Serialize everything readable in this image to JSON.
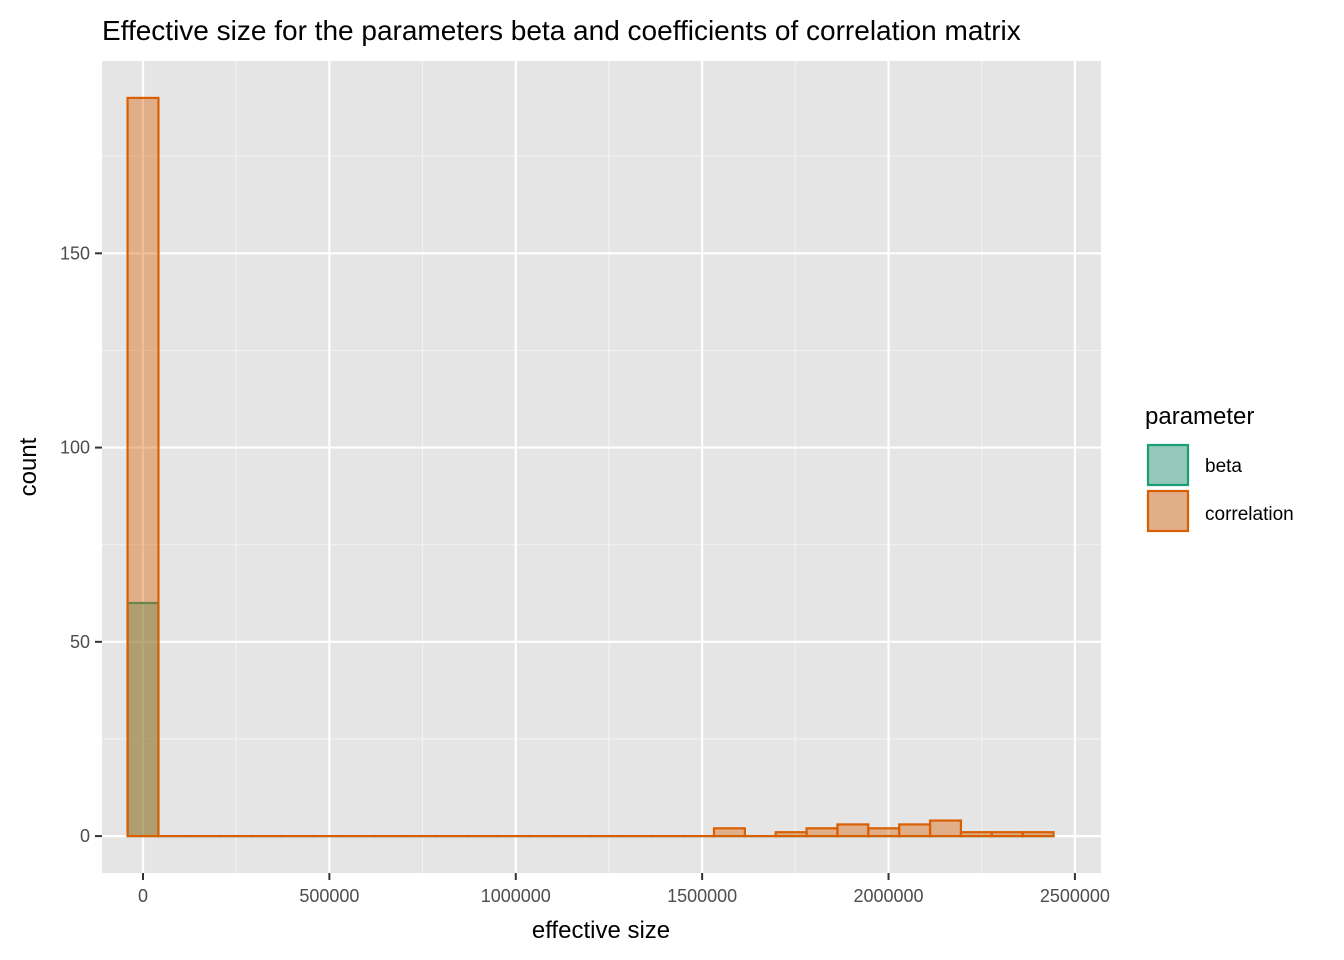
{
  "chart_data": {
    "type": "bar",
    "title": "Effective size for the parameters beta and coefficients of correlation matrix",
    "xlabel": "effective size",
    "ylabel": "count",
    "xlim": [
      -110000,
      2570000
    ],
    "ylim": [
      -9.5,
      199.5
    ],
    "x_ticks": [
      0,
      500000,
      1000000,
      1500000,
      2000000,
      2500000
    ],
    "x_tick_labels": [
      "0",
      "500000",
      "1000000",
      "1500000",
      "2000000",
      "2500000"
    ],
    "y_ticks": [
      0,
      50,
      100,
      150
    ],
    "y_tick_labels": [
      "0",
      "50",
      "100",
      "150"
    ],
    "bin_width": 82800,
    "bin_start": -41400,
    "bin_count": 30,
    "grid": true,
    "legend_position": "right",
    "legend_title": "parameter",
    "series": [
      {
        "name": "beta",
        "fill": "#1b9e77",
        "stroke": "#1b9e77",
        "counts": [
          60,
          0,
          0,
          0,
          0,
          0,
          0,
          0,
          0,
          0,
          0,
          0,
          0,
          0,
          0,
          0,
          0,
          0,
          0,
          0,
          0,
          0,
          0,
          0,
          0,
          0,
          0,
          0,
          0,
          0
        ]
      },
      {
        "name": "correlation",
        "fill": "#d95f02",
        "stroke": "#d95f02",
        "counts": [
          190,
          0,
          0,
          0,
          0,
          0,
          0,
          0,
          0,
          0,
          0,
          0,
          0,
          0,
          0,
          0,
          0,
          0,
          0,
          2,
          0,
          1,
          2,
          3,
          2,
          3,
          4,
          1,
          1,
          1
        ]
      }
    ]
  }
}
